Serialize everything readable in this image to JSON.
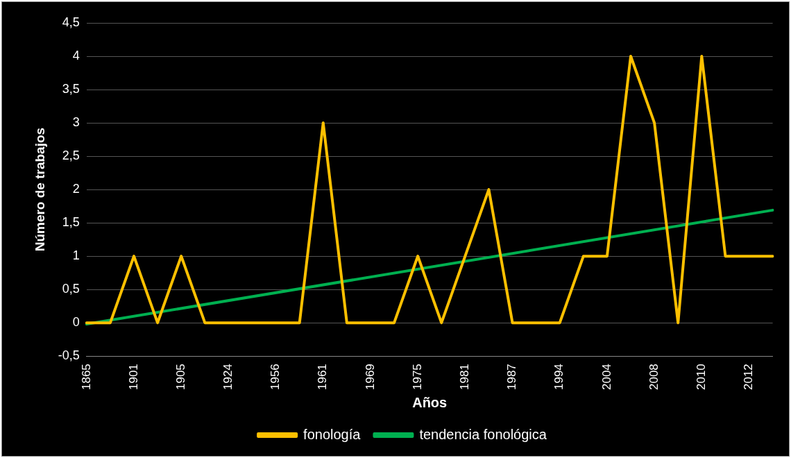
{
  "chart_data": {
    "type": "line",
    "xlabel": "Años",
    "ylabel": "Número de trabajos",
    "categories": [
      "1865",
      null,
      "1901",
      null,
      "1905",
      null,
      "1924",
      null,
      "1956",
      null,
      "1961",
      null,
      "1969",
      null,
      "1975",
      null,
      "1981",
      null,
      "1987",
      null,
      "1994",
      null,
      "2004",
      null,
      "2008",
      null,
      "2010",
      null,
      "2012",
      null
    ],
    "series": [
      {
        "name": "fonología",
        "color": "#ffc000",
        "values": [
          0,
          0,
          1,
          0,
          1,
          0,
          0,
          0,
          0,
          0,
          3,
          0,
          0,
          0,
          1,
          0,
          1,
          2,
          0,
          0,
          0,
          1,
          1,
          4,
          3,
          0,
          4,
          1,
          1,
          1
        ]
      },
      {
        "name": "tendencia fonológica",
        "color": "#00b050",
        "values": [
          -0.02,
          null,
          null,
          null,
          null,
          null,
          null,
          null,
          null,
          null,
          null,
          null,
          null,
          null,
          null,
          null,
          null,
          null,
          null,
          null,
          null,
          null,
          null,
          null,
          null,
          null,
          null,
          null,
          null,
          1.69
        ]
      }
    ],
    "ylim": [
      -0.5,
      4.5
    ],
    "yticks": [
      {
        "value": -0.5,
        "label": "-0,5"
      },
      0,
      {
        "value": 0.5,
        "label": "0,5"
      },
      1,
      {
        "value": 1.5,
        "label": "1,5"
      },
      2,
      {
        "value": 2.5,
        "label": "2,5"
      },
      3,
      {
        "value": 3.5,
        "label": "3,5"
      },
      4,
      {
        "value": 4.5,
        "label": "4,5"
      }
    ],
    "grid": "y",
    "legend": "bottom",
    "marker": "none",
    "line_style": "solid"
  }
}
